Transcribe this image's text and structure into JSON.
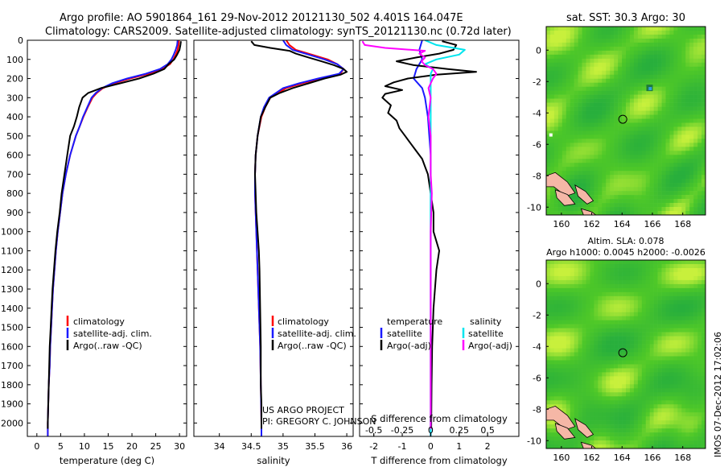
{
  "header": {
    "line1": "Argo profile: AO 5901864_161 29-Nov-2012 20121130_502 4.401S 164.047E",
    "line2": "Climatology: CARS2009. Satellite-adjusted climatology: synTS_20121130.nc (0.72d later)"
  },
  "colors": {
    "climatology": "#ff0000",
    "satellite": "#1a1aff",
    "argo": "#000000",
    "sal_satellite": "#00e5ee",
    "sal_argo": "#ff00ff",
    "land": "#f5b7a6",
    "sea_base": "#6dd630"
  },
  "credits": {
    "project": "US ARGO PROJECT",
    "pi": "PI: GREGORY C. JOHNSON",
    "side": "IMOS 07-Dec-2012 17:02:06"
  },
  "chart_data": [
    {
      "type": "line",
      "id": "temperature",
      "xlabel": "temperature (deg C)",
      "ylabel": "",
      "xlim": [
        -2,
        31.5
      ],
      "ylim": [
        2070,
        0
      ],
      "xticks": [
        0,
        5,
        10,
        15,
        20,
        25,
        30
      ],
      "xtick_labels": [
        "0",
        "5",
        "10",
        "15",
        "20",
        "25",
        "30"
      ],
      "yticks": [
        0,
        100,
        200,
        300,
        400,
        500,
        600,
        700,
        800,
        900,
        1000,
        1100,
        1200,
        1300,
        1400,
        1500,
        1600,
        1700,
        1800,
        1900,
        2000
      ],
      "legend": [
        "climatology",
        "satellite-adj. clim.",
        "Argo(..raw -QC)"
      ],
      "series": [
        {
          "name": "climatology",
          "depth": [
            0,
            25,
            50,
            75,
            100,
            125,
            150,
            175,
            200,
            225,
            250,
            275,
            300,
            350,
            400,
            450,
            500,
            600,
            700,
            800,
            900,
            1000,
            1100,
            1200,
            1300,
            1400,
            1500,
            1600,
            1700,
            1800,
            1900,
            2000,
            2070
          ],
          "values": [
            29.9,
            29.8,
            29.6,
            29.2,
            28.7,
            28.0,
            26.4,
            23.5,
            19.6,
            16.2,
            13.9,
            12.6,
            11.7,
            10.7,
            9.8,
            9.0,
            8.2,
            7.0,
            6.1,
            5.4,
            4.9,
            4.4,
            4.0,
            3.7,
            3.4,
            3.2,
            3.0,
            2.8,
            2.7,
            2.5,
            2.4,
            2.3,
            2.3
          ]
        },
        {
          "name": "satellite-adj. clim.",
          "depth": [
            0,
            25,
            50,
            75,
            100,
            125,
            150,
            175,
            200,
            225,
            250,
            275,
            300,
            350,
            400,
            450,
            500,
            600,
            700,
            800,
            900,
            1000,
            1100,
            1200,
            1300,
            1400,
            1500,
            1600,
            1700,
            1800,
            1900,
            2000,
            2070
          ],
          "values": [
            29.6,
            29.5,
            29.2,
            28.8,
            28.3,
            27.5,
            25.9,
            22.9,
            19.0,
            15.8,
            13.7,
            12.4,
            11.5,
            10.6,
            9.7,
            9.0,
            8.2,
            7.0,
            6.1,
            5.4,
            4.9,
            4.4,
            4.0,
            3.7,
            3.4,
            3.2,
            3.0,
            2.8,
            2.7,
            2.5,
            2.4,
            2.3,
            2.3
          ]
        },
        {
          "name": "Argo(..raw -QC)",
          "depth": [
            5,
            25,
            50,
            75,
            100,
            125,
            150,
            175,
            200,
            225,
            250,
            275,
            300,
            350,
            400,
            450,
            500,
            600,
            700,
            800,
            900,
            1000,
            1100,
            1200,
            1300,
            1400,
            1500,
            1600,
            1700,
            1800,
            1900,
            2000,
            2030
          ],
          "values": [
            30.3,
            30.2,
            30.0,
            29.5,
            28.9,
            27.7,
            26.8,
            24.5,
            21.5,
            17.5,
            13.5,
            10.8,
            9.6,
            8.9,
            8.4,
            7.8,
            7.0,
            6.4,
            5.8,
            5.2,
            4.8,
            4.3,
            3.9,
            3.6,
            3.3,
            3.1,
            2.9,
            2.7,
            2.6,
            2.5,
            2.4,
            2.3,
            2.3
          ]
        }
      ]
    },
    {
      "type": "line",
      "id": "salinity",
      "xlabel": "salinity",
      "xlim": [
        33.6,
        36.1
      ],
      "ylim": [
        2070,
        0
      ],
      "xticks": [
        34,
        34.5,
        35,
        35.5,
        36
      ],
      "xtick_labels": [
        "34",
        "34.5",
        "35",
        "35.5",
        "36"
      ],
      "legend": [
        "climatology",
        "satellite-adj. clim.",
        "Argo(..raw -QC)"
      ],
      "series": [
        {
          "name": "climatology",
          "depth": [
            0,
            25,
            50,
            75,
            100,
            125,
            150,
            175,
            200,
            225,
            250,
            300,
            350,
            400,
            500,
            600,
            700,
            800,
            900,
            1000,
            1200,
            1400,
            1600,
            1800,
            2000,
            2070
          ],
          "values": [
            35.05,
            35.1,
            35.2,
            35.45,
            35.7,
            35.85,
            35.95,
            35.9,
            35.6,
            35.3,
            35.05,
            34.8,
            34.72,
            34.66,
            34.6,
            34.57,
            34.56,
            34.56,
            34.57,
            34.58,
            34.6,
            34.62,
            34.64,
            34.65,
            34.66,
            34.66
          ]
        },
        {
          "name": "satellite-adj. clim.",
          "depth": [
            0,
            25,
            50,
            75,
            100,
            125,
            150,
            175,
            200,
            225,
            250,
            300,
            350,
            400,
            500,
            600,
            700,
            800,
            900,
            1000,
            1200,
            1400,
            1600,
            1800,
            2000,
            2070
          ],
          "values": [
            35.0,
            35.05,
            35.15,
            35.4,
            35.65,
            35.85,
            35.95,
            35.88,
            35.55,
            35.25,
            35.0,
            34.78,
            34.7,
            34.65,
            34.6,
            34.57,
            34.56,
            34.56,
            34.57,
            34.58,
            34.6,
            34.62,
            34.64,
            34.65,
            34.66,
            34.66
          ]
        },
        {
          "name": "Argo(..raw -QC)",
          "depth": [
            5,
            25,
            40,
            55,
            70,
            90,
            110,
            130,
            150,
            165,
            180,
            200,
            225,
            250,
            275,
            300,
            350,
            400,
            500,
            600,
            700,
            800,
            900,
            1000,
            1100,
            1200,
            1400,
            1600,
            1800,
            1900,
            2000,
            2030
          ],
          "values": [
            34.5,
            34.55,
            34.8,
            35.1,
            35.2,
            35.4,
            35.6,
            35.8,
            35.95,
            36.0,
            35.9,
            35.65,
            35.4,
            35.15,
            34.95,
            34.8,
            34.72,
            34.65,
            34.6,
            34.57,
            34.56,
            34.57,
            34.58,
            34.6,
            34.62,
            34.63,
            34.64,
            34.65,
            34.65,
            34.66,
            34.66,
            34.66
          ]
        }
      ]
    },
    {
      "type": "line",
      "id": "difference",
      "xlabel": "T difference from climatology",
      "xlabel2": "S difference from climatology",
      "xlim": [
        -2.5,
        3.1
      ],
      "xlim_salinity": [
        -0.625,
        0.775
      ],
      "ylim": [
        2070,
        0
      ],
      "xticks": [
        -2,
        -1,
        0,
        1,
        2
      ],
      "xtick_labels": [
        "-2",
        "-1",
        "0",
        "1",
        "2"
      ],
      "xticks_salinity": [
        -0.5,
        -0.25,
        0,
        0.25,
        0.5
      ],
      "xtick_labels_salinity": [
        "-0.5",
        "-0.25",
        "0",
        "0.25",
        "0.5"
      ],
      "legend_titles": [
        "temperature",
        "salinity"
      ],
      "legend": [
        "satellite",
        "Argo(-adj)",
        "satellite",
        "Argo(-adj)"
      ],
      "series": [
        {
          "name": "temperature satellite",
          "variable": "T",
          "depth": [
            0,
            50,
            100,
            150,
            200,
            250,
            300,
            400,
            600,
            800,
            1000,
            1500,
            2000,
            2070
          ],
          "values": [
            -0.3,
            -0.4,
            -0.3,
            -0.5,
            -0.6,
            -0.3,
            -0.2,
            -0.1,
            0,
            0,
            0,
            0,
            0,
            0
          ]
        },
        {
          "name": "temperature Argo(-adj)",
          "variable": "T",
          "depth": [
            5,
            25,
            50,
            70,
            90,
            110,
            130,
            150,
            165,
            180,
            200,
            220,
            240,
            260,
            280,
            300,
            340,
            380,
            420,
            460,
            500,
            540,
            580,
            620,
            660,
            700,
            800,
            900,
            1000,
            1100,
            1200,
            1400,
            1600,
            1800,
            2000,
            2030
          ],
          "values": [
            0.4,
            0.9,
            0.8,
            0.3,
            -0.5,
            -1.2,
            -0.6,
            0.6,
            1.6,
            0.2,
            -0.8,
            -1.3,
            -1.6,
            -1.0,
            -1.6,
            -1.7,
            -1.4,
            -1.5,
            -1.2,
            -1.1,
            -0.9,
            -0.7,
            -0.5,
            -0.3,
            -0.2,
            -0.1,
            0,
            0.1,
            0.1,
            0.3,
            0.2,
            0.1,
            0.05,
            0.03,
            0.02,
            0.02
          ]
        },
        {
          "name": "salinity satellite",
          "variable": "S",
          "depth": [
            0,
            25,
            50,
            75,
            100,
            125,
            150,
            175,
            200,
            250,
            300,
            400,
            600,
            800,
            1000,
            1500,
            2000,
            2070
          ],
          "values": [
            -0.05,
            0.05,
            0.3,
            0.25,
            0.05,
            -0.05,
            0.02,
            0,
            0,
            0,
            0,
            0,
            0,
            0,
            0,
            0,
            0,
            0
          ]
        },
        {
          "name": "salinity Argo(-adj)",
          "variable": "S",
          "depth": [
            5,
            25,
            40,
            55,
            70,
            90,
            110,
            130,
            150,
            175,
            200,
            250,
            300,
            400,
            500,
            600,
            700,
            800,
            1000,
            1200,
            1500,
            1800,
            2000,
            2030
          ],
          "values": [
            -0.6,
            -0.58,
            -0.4,
            -0.05,
            -0.1,
            -0.05,
            -0.08,
            -0.05,
            0.02,
            0.05,
            0.02,
            -0.02,
            0,
            -0.02,
            0,
            0,
            0,
            0.01,
            0,
            0,
            0,
            0,
            0,
            0
          ]
        }
      ]
    },
    {
      "type": "heatmap",
      "id": "sst_map",
      "title": "sat. SST: 30.3 Argo: 30",
      "xlim": [
        159,
        169.5
      ],
      "ylim": [
        -10.5,
        1.5
      ],
      "xticks": [
        160,
        162,
        164,
        166,
        168
      ],
      "xtick_labels": [
        "160",
        "162",
        "164",
        "166",
        "168"
      ],
      "yticks": [
        0,
        -2,
        -4,
        -6,
        -8,
        -10
      ],
      "ytick_labels": [
        "0",
        "-2",
        "-4",
        "-6",
        "-8",
        "-10"
      ],
      "marker": [
        164.047,
        -4.401
      ]
    },
    {
      "type": "heatmap",
      "id": "sla_map",
      "title": "Altim. SLA: 0.078",
      "subtitle": "Argo h1000: 0.0045 h2000: -0.0026",
      "xlim": [
        159,
        169.5
      ],
      "ylim": [
        -10.5,
        1.5
      ],
      "xticks": [
        160,
        162,
        164,
        166,
        168
      ],
      "xtick_labels": [
        "160",
        "162",
        "164",
        "166",
        "168"
      ],
      "yticks": [
        0,
        -2,
        -4,
        -6,
        -8,
        -10
      ],
      "ytick_labels": [
        "0",
        "-2",
        "-4",
        "-6",
        "-8",
        "-10"
      ],
      "marker": [
        164.047,
        -4.401
      ]
    }
  ]
}
